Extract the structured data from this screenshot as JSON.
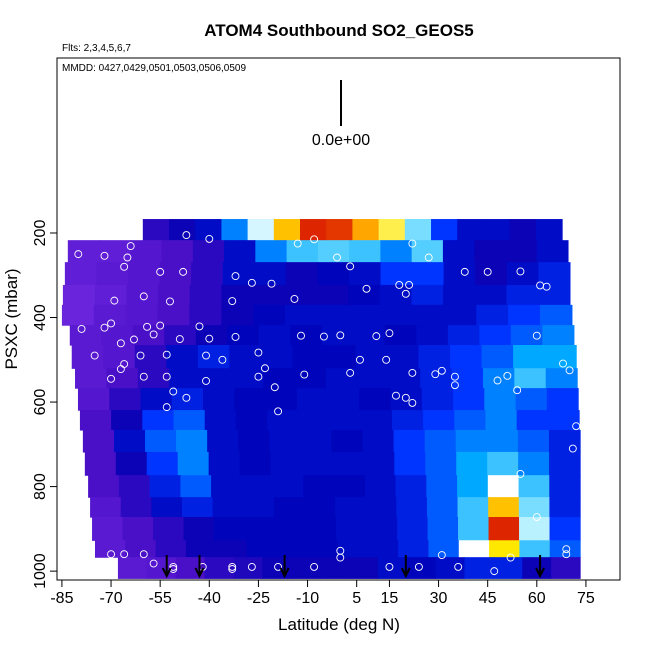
{
  "chart_data": {
    "type": "heatmap",
    "title": "ATOM4 Southbound SO2_GEOS5",
    "flights_note": "Flts: 2,3,4,5,6,7",
    "dates_note": "MMDD: 0427,0429,0501,0503,0506,0509",
    "scale_label": "0.0e+00",
    "xlabel": "Latitude (deg N)",
    "ylabel": "PSXC (mbar)",
    "xlim": [
      -86.5,
      85.4
    ],
    "ylim": [
      1021,
      -214
    ],
    "xticks": [
      -85,
      -70,
      -55,
      -40,
      -25,
      -10,
      5,
      15,
      30,
      45,
      60,
      75
    ],
    "yticks": [
      200,
      400,
      600,
      800,
      1000
    ],
    "colorscale": [
      [
        0,
        "#7a2ee6"
      ],
      [
        0.15,
        "#4a10c8"
      ],
      [
        0.27,
        "#0000b4"
      ],
      [
        0.4,
        "#0034ff"
      ],
      [
        0.55,
        "#00a8ff"
      ],
      [
        0.67,
        "#90e8ff"
      ],
      [
        0.75,
        "#ffffff"
      ],
      [
        0.85,
        "#ffe800"
      ],
      [
        0.93,
        "#ff8000"
      ],
      [
        1,
        "#d00000"
      ]
    ],
    "rows": [
      {
        "p": [
          167,
          217
        ],
        "lat": [
          -60.3,
          67.7
        ],
        "values": [
          0.2,
          0.25,
          0.3,
          0.5,
          0.72,
          0.88,
          0.98,
          0.97,
          0.9,
          0.82,
          0.65,
          0.4,
          0.3,
          0.3,
          0.25,
          0.3
        ]
      },
      {
        "p": [
          217,
          269
        ],
        "lat": [
          -83.2,
          69.5
        ],
        "values": [
          0.08,
          0.08,
          0.12,
          0.15,
          0.2,
          0.3,
          0.5,
          0.6,
          0.62,
          0.6,
          0.5,
          0.62,
          0.3,
          0.25,
          0.25,
          0.3
        ]
      },
      {
        "p": [
          269,
          323
        ],
        "lat": [
          -84.1,
          70.1
        ],
        "values": [
          0.08,
          0.1,
          0.12,
          0.15,
          0.2,
          0.3,
          0.3,
          0.25,
          0.28,
          0.3,
          0.4,
          0.4,
          0.3,
          0.25,
          0.3,
          0.35
        ]
      },
      {
        "p": [
          323,
          370
        ],
        "lat": [
          -84.7,
          70.1
        ],
        "values": [
          0.05,
          0.08,
          0.12,
          0.15,
          0.2,
          0.25,
          0.25,
          0.25,
          0.25,
          0.28,
          0.3,
          0.35,
          0.3,
          0.3,
          0.35,
          0.35
        ]
      },
      {
        "p": [
          370,
          418
        ],
        "lat": [
          -85,
          70.7
        ],
        "values": [
          0.05,
          0.1,
          0.12,
          0.15,
          0.2,
          0.25,
          0.28,
          0.3,
          0.3,
          0.3,
          0.3,
          0.3,
          0.3,
          0.35,
          0.4,
          0.45
        ]
      },
      {
        "p": [
          418,
          465
        ],
        "lat": [
          -82.6,
          71.3
        ],
        "values": [
          0.1,
          0.12,
          0.15,
          0.2,
          0.25,
          0.28,
          0.3,
          0.28,
          0.3,
          0.3,
          0.28,
          0.3,
          0.35,
          0.4,
          0.45,
          0.5
        ]
      },
      {
        "p": [
          465,
          520
        ],
        "lat": [
          -82,
          72
        ],
        "values": [
          0.1,
          0.12,
          0.2,
          0.3,
          0.35,
          0.3,
          0.3,
          0.28,
          0.28,
          0.3,
          0.3,
          0.35,
          0.4,
          0.45,
          0.55,
          0.55
        ]
      },
      {
        "p": [
          520,
          567
        ],
        "lat": [
          -81,
          72.3
        ],
        "values": [
          0.1,
          0.15,
          0.2,
          0.3,
          0.3,
          0.3,
          0.28,
          0.28,
          0.3,
          0.3,
          0.3,
          0.35,
          0.4,
          0.5,
          0.6,
          0.5
        ]
      },
      {
        "p": [
          567,
          619
        ],
        "lat": [
          -80.1,
          72.6
        ],
        "values": [
          0.12,
          0.2,
          0.3,
          0.35,
          0.3,
          0.28,
          0.28,
          0.3,
          0.3,
          0.28,
          0.3,
          0.35,
          0.4,
          0.5,
          0.45,
          0.4
        ]
      },
      {
        "p": [
          619,
          666
        ],
        "lat": [
          -79.5,
          72.9
        ],
        "values": [
          0.15,
          0.25,
          0.4,
          0.45,
          0.3,
          0.28,
          0.3,
          0.3,
          0.3,
          0.3,
          0.35,
          0.4,
          0.45,
          0.5,
          0.4,
          0.4
        ]
      },
      {
        "p": [
          666,
          718
        ],
        "lat": [
          -78.6,
          73.2
        ],
        "values": [
          0.15,
          0.3,
          0.45,
          0.5,
          0.3,
          0.28,
          0.3,
          0.3,
          0.28,
          0.3,
          0.4,
          0.45,
          0.5,
          0.5,
          0.45,
          0.35
        ]
      },
      {
        "p": [
          718,
          773
        ],
        "lat": [
          -78,
          73.2
        ],
        "values": [
          0.15,
          0.25,
          0.4,
          0.5,
          0.3,
          0.28,
          0.3,
          0.3,
          0.3,
          0.3,
          0.4,
          0.45,
          0.55,
          0.6,
          0.5,
          0.35
        ]
      },
      {
        "p": [
          773,
          825
        ],
        "lat": [
          -77,
          73.2
        ],
        "values": [
          0.15,
          0.2,
          0.35,
          0.45,
          0.3,
          0.3,
          0.3,
          0.28,
          0.28,
          0.3,
          0.35,
          0.45,
          0.55,
          0.75,
          0.6,
          0.35
        ]
      },
      {
        "p": [
          825,
          872
        ],
        "lat": [
          -76.4,
          73.2
        ],
        "values": [
          0.12,
          0.2,
          0.3,
          0.35,
          0.3,
          0.3,
          0.28,
          0.28,
          0.3,
          0.3,
          0.35,
          0.45,
          0.6,
          0.88,
          0.65,
          0.35
        ]
      },
      {
        "p": [
          872,
          927
        ],
        "lat": [
          -75.8,
          73.2
        ],
        "values": [
          0.1,
          0.15,
          0.2,
          0.25,
          0.28,
          0.28,
          0.28,
          0.28,
          0.3,
          0.3,
          0.35,
          0.45,
          0.6,
          0.98,
          0.7,
          0.4
        ]
      },
      {
        "p": [
          927,
          967
        ],
        "lat": [
          -74.9,
          73.2
        ],
        "values": [
          0.1,
          0.15,
          0.2,
          0.25,
          0.25,
          0.28,
          0.28,
          0.28,
          0.3,
          0.3,
          0.35,
          0.45,
          0.75,
          0.85,
          0.6,
          0.45
        ]
      },
      {
        "p": [
          967,
          1017
        ],
        "lat": [
          -67.9,
          73.2
        ],
        "values": [
          0.1,
          0.12,
          0.15,
          0.2,
          0.22,
          0.25,
          0.25,
          0.25,
          0.25,
          0.3,
          0.28,
          0.3,
          0.35,
          0.35,
          0.25,
          0.2
        ]
      }
    ],
    "points": {
      "lat": [
        -47,
        -40,
        -64,
        -80,
        -72,
        -55,
        -48,
        -32,
        -27,
        -65,
        -66,
        -13,
        -8,
        -1,
        3,
        22,
        27,
        38,
        45,
        55,
        61,
        63,
        18,
        21,
        8,
        20,
        -21,
        -14,
        -33,
        -52,
        -69,
        -60,
        -70,
        -72,
        -79,
        -67,
        -63,
        -55,
        -59,
        -57,
        -53,
        -49,
        -43,
        -40,
        -32,
        -25,
        -41,
        -53,
        -75,
        -61,
        -66,
        -70,
        -60,
        -19,
        -12,
        -5,
        11,
        15,
        0,
        6,
        14,
        3,
        22,
        31,
        35,
        51,
        48,
        54,
        60,
        68,
        70,
        72,
        71,
        -20,
        17,
        20,
        22,
        -51,
        -47,
        -53,
        -85,
        -67,
        -25,
        -41,
        -36,
        -23,
        -11,
        35,
        29,
        55,
        60,
        -60,
        -66,
        -70,
        -51,
        -42,
        -33,
        -27,
        -19,
        -8,
        0,
        0,
        15,
        24,
        31,
        36,
        47,
        52,
        69,
        69,
        -57,
        -51,
        -33
      ],
      "p": [
        205,
        214,
        231,
        250,
        254,
        292,
        292,
        302,
        318,
        258,
        280,
        225,
        215,
        258,
        279,
        225,
        258,
        292,
        292,
        291,
        324,
        327,
        323,
        323,
        332,
        344,
        320,
        356,
        361,
        362,
        360,
        350,
        414,
        424,
        427,
        461,
        452,
        419,
        422,
        440,
        488,
        451,
        421,
        450,
        446,
        483,
        550,
        540,
        490,
        490,
        510,
        545,
        540,
        622,
        443,
        445,
        444,
        437,
        442,
        500,
        500,
        531,
        531,
        526,
        540,
        538,
        549,
        572,
        443,
        509,
        525,
        657,
        710,
        565,
        585,
        590,
        602,
        575,
        590,
        612,
        515,
        522,
        540,
        490,
        500,
        520,
        535,
        560,
        534,
        770,
        872,
        960,
        960,
        960,
        990,
        990,
        990,
        990,
        990,
        990,
        952,
        968,
        990,
        990,
        962,
        990,
        1000,
        968,
        948,
        960,
        982,
        995,
        995
      ]
    },
    "arrows_lat": [
      -53,
      -43,
      -17,
      20,
      61
    ]
  }
}
